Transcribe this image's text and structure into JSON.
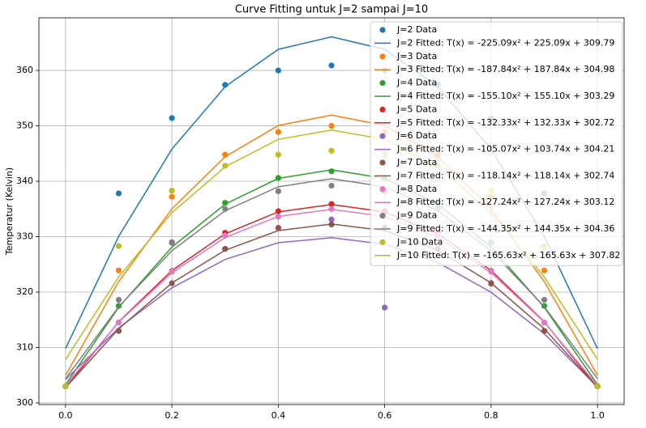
{
  "chart_data": {
    "type": "scatter+line",
    "title": "Curve Fitting untuk J=2 sampai J=10",
    "ylabel": "Temperatur (Kelvin)",
    "x": [
      0,
      0.1,
      0.2,
      0.3,
      0.4,
      0.5,
      0.6,
      0.7,
      0.8,
      0.9,
      1.0
    ],
    "xlim": [
      -0.05,
      1.05
    ],
    "xticks": [
      {
        "value": 0,
        "label": "0.0"
      },
      0.2,
      0.4,
      0.6,
      0.8,
      {
        "value": 1,
        "label": "1.0"
      }
    ],
    "ylim": [
      299.7,
      369.5
    ],
    "yticks": [
      300,
      310,
      320,
      330,
      340,
      350,
      360
    ],
    "grid": true,
    "legend": "upper right",
    "series": [
      {
        "name": "J=2 Data",
        "type": "scatter",
        "color": "#1f77b4",
        "values": [
          303,
          337.8,
          351.4,
          357.4,
          360,
          360.9,
          360,
          357.4,
          351.4,
          337.8,
          303
        ]
      },
      {
        "name": "J=2 Fitted: T(x) = -225.09x² + 225.09x + 309.79",
        "type": "line",
        "color": "#1f77b4",
        "values": [
          309.79,
          330.05,
          345.8,
          357.06,
          363.81,
          366.06,
          363.81,
          357.06,
          345.8,
          330.05,
          309.79
        ]
      },
      {
        "name": "J=3 Data",
        "type": "scatter",
        "color": "#ff7f0e",
        "values": [
          303,
          323.9,
          337.2,
          344.8,
          348.9,
          350,
          348.9,
          344.8,
          337.2,
          323.9,
          303
        ]
      },
      {
        "name": "J=3 Fitted: T(x) = -187.84x² + 187.84x + 304.98",
        "type": "line",
        "color": "#ff7f0e",
        "values": [
          304.98,
          321.89,
          335.03,
          344.43,
          350.06,
          351.94,
          350.06,
          344.43,
          335.03,
          321.89,
          304.98
        ]
      },
      {
        "name": "J=4 Data",
        "type": "scatter",
        "color": "#2ca02c",
        "values": [
          303,
          317.5,
          328.9,
          336.1,
          340.6,
          341.8,
          340.6,
          336.1,
          328.9,
          317.5,
          303
        ]
      },
      {
        "name": "J=4 Fitted: T(x) = -155.10x² + 155.10x + 303.29",
        "type": "line",
        "color": "#2ca02c",
        "values": [
          303.29,
          317.25,
          328.11,
          335.86,
          340.51,
          342.07,
          340.51,
          335.86,
          328.11,
          317.25,
          303.29
        ]
      },
      {
        "name": "J=5 Data",
        "type": "scatter",
        "color": "#d62728",
        "values": [
          303,
          313,
          323.8,
          330.7,
          334.6,
          335.9,
          334.6,
          330.7,
          323.8,
          313,
          303
        ]
      },
      {
        "name": "J=5 Fitted: T(x) = -132.33x² + 132.33x + 302.72",
        "type": "line",
        "color": "#d62728",
        "values": [
          302.72,
          314.63,
          323.89,
          330.51,
          334.48,
          335.8,
          334.48,
          330.51,
          323.89,
          314.63,
          302.72
        ]
      },
      {
        "name": "J=6 Data",
        "type": "scatter",
        "color": "#9467bd",
        "values": [
          303,
          314.5,
          328.9,
          327.8,
          331.6,
          333.1,
          317.2,
          327.8,
          321.5,
          314.5,
          303
        ]
      },
      {
        "name": "J=6 Fitted: T(x) = -105.07x² + 103.74x + 304.21",
        "type": "line",
        "color": "#9467bd",
        "values": [
          304.21,
          313.53,
          320.76,
          325.88,
          328.9,
          329.81,
          328.63,
          325.34,
          319.96,
          312.47,
          302.88
        ]
      },
      {
        "name": "J=7 Data",
        "type": "scatter",
        "color": "#8c564b",
        "values": [
          303,
          313,
          321.6,
          327.8,
          331.6,
          332.2,
          331.6,
          327.8,
          321.6,
          313,
          303
        ]
      },
      {
        "name": "J=7 Fitted: T(x) = -118.14x² + 118.14x + 302.74",
        "type": "line",
        "color": "#8c564b",
        "values": [
          302.74,
          313.37,
          321.64,
          327.55,
          331.09,
          332.28,
          331.09,
          327.55,
          321.64,
          313.37,
          302.74
        ]
      },
      {
        "name": "J=8 Data",
        "type": "scatter",
        "color": "#e377c2",
        "values": [
          303,
          314.5,
          323.7,
          330.2,
          333.6,
          335,
          333.6,
          330.2,
          323.7,
          314.5,
          303
        ]
      },
      {
        "name": "J=8 Fitted: T(x) = -127.24x² + 127.24x + 303.12",
        "type": "line",
        "color": "#e377c2",
        "values": [
          303.12,
          314.57,
          323.48,
          329.84,
          333.66,
          334.93,
          333.66,
          329.84,
          323.48,
          314.57,
          303.12
        ]
      },
      {
        "name": "J=9 Data",
        "type": "scatter",
        "color": "#7f7f7f",
        "values": [
          303,
          318.6,
          329,
          335,
          338.2,
          339.2,
          338.2,
          335,
          329,
          318.6,
          303
        ]
      },
      {
        "name": "J=9 Fitted: T(x) = -144.35x² + 144.35x + 304.36",
        "type": "line",
        "color": "#7f7f7f",
        "values": [
          304.36,
          317.35,
          327.46,
          334.67,
          339,
          340.45,
          339,
          334.67,
          327.46,
          317.35,
          304.36
        ]
      },
      {
        "name": "J=10 Data",
        "type": "scatter",
        "color": "#bcbd22",
        "values": [
          303,
          328.3,
          338.3,
          342.8,
          344.8,
          345.5,
          344.8,
          342.8,
          338.3,
          328.3,
          303
        ]
      },
      {
        "name": "J=10 Fitted: T(x) = -165.63x² + 165.63x + 307.82",
        "type": "line",
        "color": "#bcbd22",
        "values": [
          307.82,
          322.73,
          334.32,
          342.6,
          347.57,
          349.23,
          347.57,
          342.6,
          334.32,
          322.73,
          307.82
        ]
      }
    ]
  }
}
